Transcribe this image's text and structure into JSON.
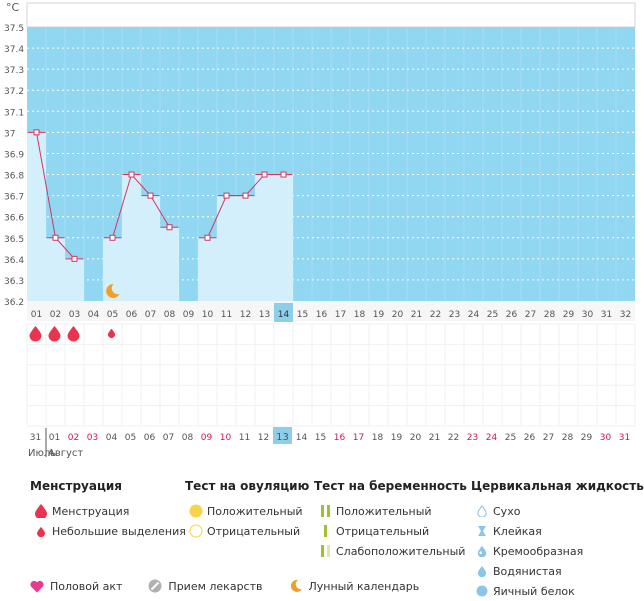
{
  "chart_data": {
    "type": "line",
    "unit": "°C",
    "ylim": [
      36.2,
      37.5
    ],
    "y_ticks": [
      "37.5",
      "37.4",
      "37.3",
      "37.2",
      "37.1",
      "37",
      "36.9",
      "36.8",
      "36.7",
      "36.6",
      "36.5",
      "36.4",
      "36.3",
      "36.2"
    ],
    "x_labels": [
      "01",
      "02",
      "03",
      "04",
      "05",
      "06",
      "07",
      "08",
      "09",
      "10",
      "11",
      "12",
      "13",
      "14",
      "15",
      "16",
      "17",
      "18",
      "19",
      "20",
      "21",
      "22",
      "23",
      "24",
      "25",
      "26",
      "27",
      "28",
      "29",
      "30",
      "31",
      "32"
    ],
    "highlight_day": "14",
    "temperatures": [
      37.0,
      36.5,
      36.4,
      null,
      36.5,
      36.8,
      36.7,
      36.55,
      null,
      36.5,
      36.7,
      36.7,
      36.8,
      36.8
    ],
    "dashed_segments": [
      [
        2,
        4
      ],
      [
        7,
        9
      ]
    ],
    "menstruation_days": [
      1,
      2,
      3
    ],
    "light_bleeding_days": [
      5
    ],
    "moon_day": 5,
    "dates_row": {
      "labels": [
        "31",
        "01",
        "02",
        "03",
        "04",
        "05",
        "06",
        "07",
        "08",
        "09",
        "10",
        "11",
        "12",
        "13",
        "14",
        "15",
        "16",
        "17",
        "18",
        "19",
        "20",
        "21",
        "22",
        "23",
        "24",
        "25",
        "26",
        "27",
        "28",
        "29",
        "30",
        "31"
      ],
      "red_indices": [
        2,
        3,
        9,
        10,
        16,
        17,
        23,
        24,
        30,
        31
      ],
      "highlight_index": 13,
      "months": [
        "Июль",
        "Август"
      ]
    }
  },
  "legend": {
    "menstruation": {
      "title": "Менструация",
      "items": [
        "Менструация",
        "Небольшие выделения"
      ]
    },
    "ovulation": {
      "title": "Тест на овуляцию",
      "items": [
        "Положительный",
        "Отрицательный"
      ]
    },
    "pregnancy": {
      "title": "Тест на беременность",
      "items": [
        "Положительный",
        "Отрицательный",
        "Слабоположительный"
      ]
    },
    "cervical": {
      "title": "Цервикальная жидкость",
      "items": [
        "Сухо",
        "Клейкая",
        "Кремообразная",
        "Водянистая",
        "Яичный белок"
      ]
    },
    "bottom": [
      "Половой акт",
      "Прием лекарств",
      "Лунный календарь"
    ]
  },
  "colors": {
    "plot_blue": "#92d7f2",
    "bar_fill": "#d4effc",
    "line": "#d3365e",
    "drop": "#e8344f",
    "highlight": "#8dcfe9",
    "date_red": "#d1184a",
    "moon": "#f0a024",
    "heart": "#e83a8c",
    "ovu_yellow": "#f8d24a",
    "preg_green": "#9ec22c",
    "cervical_blue": "#8dc4ea"
  }
}
